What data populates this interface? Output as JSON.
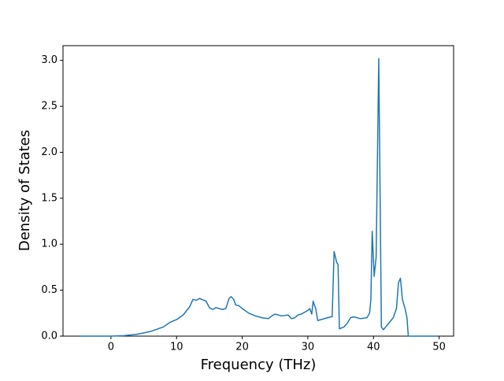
{
  "chart_data": {
    "type": "line",
    "x_label": "Frequency (THz)",
    "y_label": "Density of States",
    "xlim": [
      -7.3,
      52.2
    ],
    "ylim": [
      0,
      3.16
    ],
    "xticks": [
      0,
      10,
      20,
      30,
      40,
      50
    ],
    "yticks": [
      {
        "value": 0,
        "label": "0.0"
      },
      {
        "value": 0.5,
        "label": "0.5"
      },
      {
        "value": 1,
        "label": "1.0"
      },
      {
        "value": 1.5,
        "label": "1.5"
      },
      {
        "value": 2,
        "label": "2.0"
      },
      {
        "value": 2.5,
        "label": "2.5"
      },
      {
        "value": 3,
        "label": "3.0"
      }
    ],
    "grid": false,
    "x": [
      -4.6,
      0,
      2,
      4,
      6,
      8,
      9,
      10,
      11,
      12,
      12.5,
      13,
      13.5,
      14.5,
      15,
      15.5,
      16,
      17,
      17.5,
      18,
      18.3,
      18.7,
      19,
      19.5,
      20,
      21,
      22,
      23,
      24,
      24.5,
      25,
      26,
      27,
      27.5,
      28,
      28.5,
      29,
      30,
      30.3,
      30.6,
      30.8,
      31.2,
      31.5,
      32,
      33,
      33.5,
      33.7,
      34,
      34.4,
      34.6,
      34.8,
      35.5,
      36,
      36.5,
      37,
      38,
      39,
      39.4,
      39.6,
      39.8,
      40.1,
      40.4,
      40.8,
      41.2,
      41.5,
      42.1,
      43,
      43.5,
      43.8,
      44.1,
      44.4,
      44.8,
      45.1,
      45.3,
      49.5
    ],
    "series": [
      {
        "name": "DOS",
        "color": "#1f77b4",
        "values": [
          0,
          0,
          0.005,
          0.02,
          0.05,
          0.1,
          0.15,
          0.18,
          0.23,
          0.32,
          0.4,
          0.39,
          0.41,
          0.38,
          0.31,
          0.29,
          0.31,
          0.29,
          0.3,
          0.41,
          0.43,
          0.4,
          0.34,
          0.33,
          0.3,
          0.25,
          0.22,
          0.2,
          0.19,
          0.22,
          0.24,
          0.22,
          0.23,
          0.19,
          0.2,
          0.23,
          0.24,
          0.28,
          0.3,
          0.24,
          0.38,
          0.3,
          0.17,
          0.18,
          0.2,
          0.21,
          0.21,
          0.92,
          0.8,
          0.78,
          0.08,
          0.1,
          0.14,
          0.2,
          0.21,
          0.19,
          0.2,
          0.25,
          0.4,
          1.14,
          0.65,
          0.86,
          3.02,
          0.1,
          0.07,
          0.12,
          0.2,
          0.3,
          0.58,
          0.63,
          0.4,
          0.3,
          0.2,
          0,
          0
        ]
      }
    ]
  }
}
